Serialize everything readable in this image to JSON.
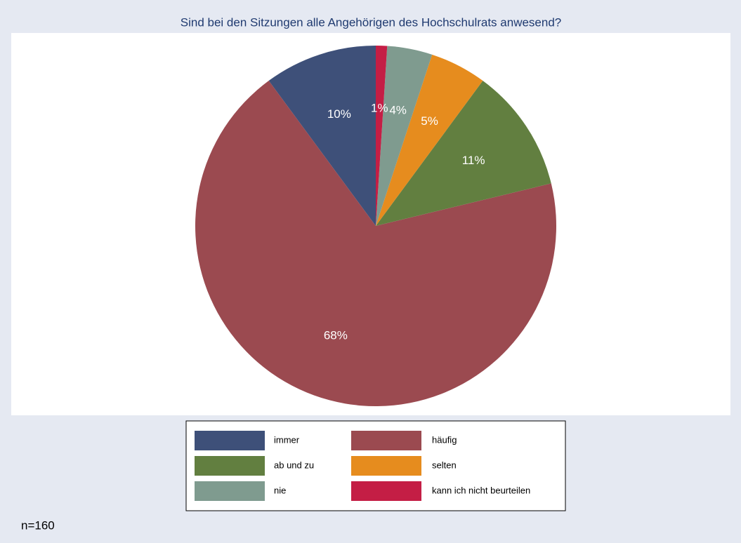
{
  "chart_data": {
    "type": "pie",
    "title": "Sind bei den Sitzungen alle Angehörigen des Hochschulrats anwesend?",
    "categories": [
      "immer",
      "häufig",
      "ab und zu",
      "selten",
      "nie",
      "kann ich nicht beurteilen"
    ],
    "values": [
      10,
      68,
      11,
      5,
      4,
      1
    ],
    "value_labels": [
      "10%",
      "68%",
      "11%",
      "5%",
      "4%",
      "1%"
    ],
    "colors": [
      "#3e5079",
      "#9b4a50",
      "#627f40",
      "#e68c1e",
      "#7f9b8f",
      "#c41e45"
    ],
    "note": "n=160"
  }
}
